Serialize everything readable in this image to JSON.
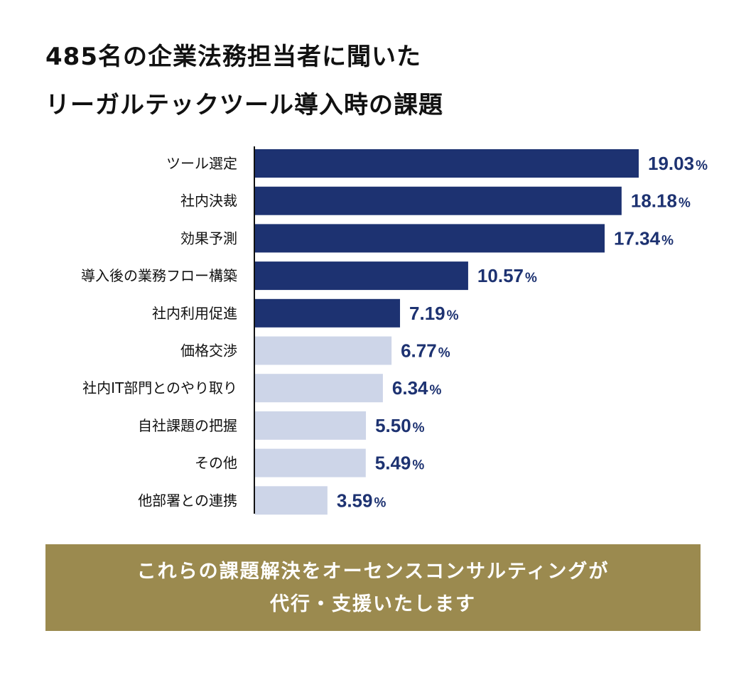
{
  "colors": {
    "highlight_bar": "#1d3271",
    "muted_bar": "#cdd5e8",
    "value_text": "#1d3271",
    "footer_bg": "#9b8a4f",
    "footer_text": "#ffffff",
    "axis_line": "#111111"
  },
  "chart_data": {
    "type": "bar",
    "orientation": "horizontal",
    "title": "485名の企業法務担当者に聞いたリーガルテックツール導入時の課題",
    "title_lines": [
      "485名の企業法務担当者に聞いた",
      "リーガルテックツール導入時の課題"
    ],
    "categories": [
      "ツール選定",
      "社内決裁",
      "効果予測",
      "導入後の業務フロー構築",
      "社内利用促進",
      "価格交渉",
      "社内IT部門とのやり取り",
      "自社課題の把握",
      "その他",
      "他部署との連携"
    ],
    "values": [
      19.03,
      18.18,
      17.34,
      10.57,
      7.19,
      6.77,
      6.34,
      5.5,
      5.49,
      3.59
    ],
    "value_labels": [
      "19.03",
      "18.18",
      "17.34",
      "10.57",
      "7.19",
      "6.77",
      "6.34",
      "5.50",
      "5.49",
      "3.59"
    ],
    "unit": "%",
    "highlighted_count": 5,
    "xlim": [
      0,
      19.03
    ],
    "xlabel": "",
    "ylabel": "",
    "grid": false,
    "legend": "none"
  },
  "footer": {
    "line1": "これらの課題解決をオーセンスコンサルティングが",
    "line2": "代行・支援いたします"
  }
}
